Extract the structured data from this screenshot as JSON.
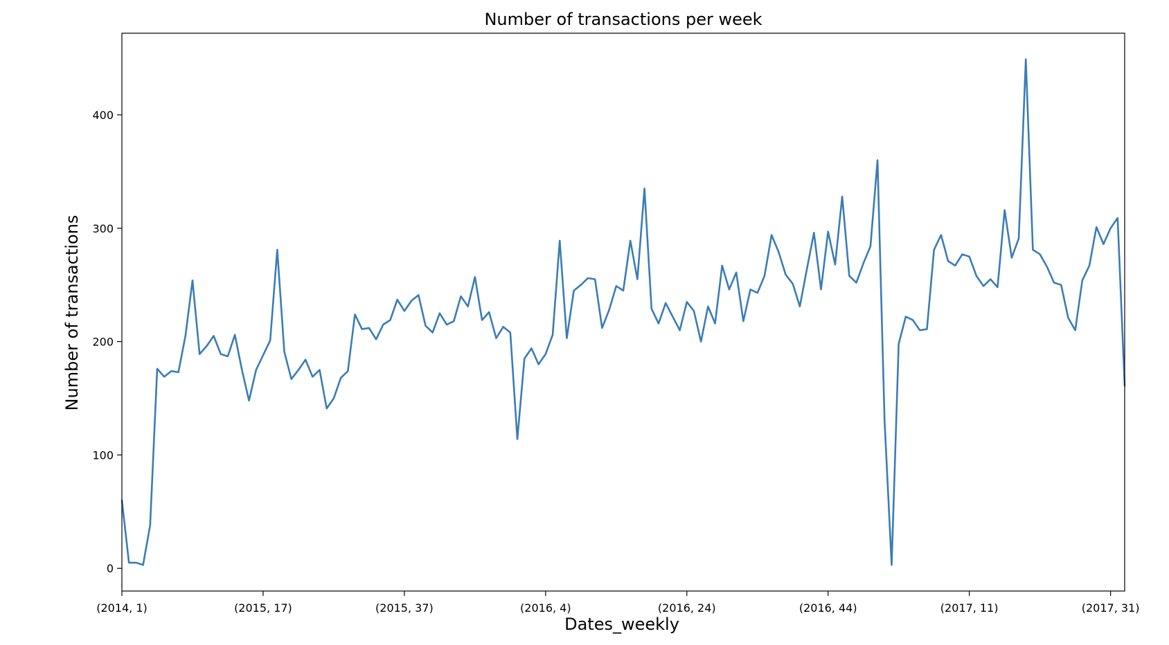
{
  "chart_data": {
    "type": "line",
    "title": "Number of transactions per week",
    "xlabel": "Dates_weekly",
    "ylabel": "Number of transactions",
    "ylim": [
      -20,
      472
    ],
    "yticks": [
      0,
      100,
      200,
      300,
      400
    ],
    "grid": false,
    "legend": "none",
    "x_tick_labels": [
      "(2014, 1)",
      "(2015, 17)",
      "(2015, 37)",
      "(2016, 4)",
      "(2016, 24)",
      "(2016, 44)",
      "(2017, 11)",
      "(2017, 31)"
    ],
    "x_tick_positions": [
      0,
      20,
      40,
      60,
      80,
      100,
      120,
      140
    ],
    "xlim": [
      0,
      142
    ],
    "series": [
      {
        "color": "#3a7cb8",
        "values": [
          60,
          5,
          5,
          3,
          38,
          176,
          169,
          174,
          173,
          205,
          254,
          189,
          196,
          205,
          189,
          187,
          206,
          175,
          148,
          175,
          188,
          201,
          281,
          191,
          167,
          175,
          184,
          169,
          175,
          141,
          150,
          168,
          174,
          224,
          211,
          212,
          202,
          215,
          219,
          237,
          227,
          236,
          241,
          214,
          208,
          225,
          215,
          218,
          240,
          231,
          257,
          219,
          226,
          203,
          213,
          208,
          114,
          185,
          194,
          180,
          189,
          206,
          289,
          203,
          245,
          250,
          256,
          255,
          212,
          228,
          249,
          245,
          289,
          255,
          335,
          229,
          216,
          234,
          222,
          210,
          235,
          227,
          200,
          231,
          216,
          267,
          246,
          261,
          218,
          246,
          243,
          258,
          294,
          279,
          259,
          251,
          231,
          264,
          296,
          246,
          297,
          268,
          328,
          258,
          252,
          269,
          284,
          360,
          130,
          3,
          198,
          222,
          219,
          210,
          211,
          281,
          294,
          271,
          267,
          277,
          275,
          258,
          249,
          255,
          248,
          316,
          274,
          291,
          449,
          281,
          277,
          266,
          252,
          250,
          221,
          210,
          254,
          267,
          301,
          286,
          300,
          309,
          161
        ]
      }
    ]
  }
}
